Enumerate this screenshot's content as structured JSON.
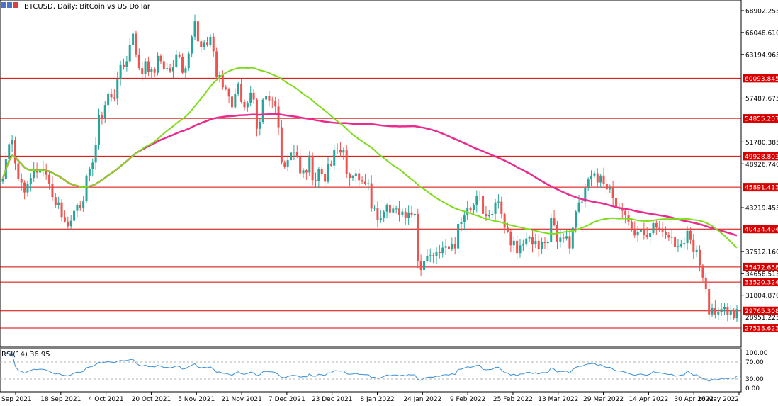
{
  "header": {
    "title": "BTCUSD, Daily:  BitCoin vs US Dollar"
  },
  "indicator": {
    "title": "RSI(14) 36.95",
    "levels": [
      "100.00",
      "70.00",
      "30.00",
      "0.00"
    ]
  },
  "colors": {
    "bull": "#26a69a",
    "bear": "#ef5350",
    "ma_fast": "#7fdc1a",
    "ma_slow": "#ea2c8f",
    "hline": "#d60000",
    "rsi_line": "#3a8fd4"
  },
  "chart_data": {
    "type": "candlestick",
    "title": "BTCUSD, Daily:  BitCoin vs US Dollar",
    "ylim": [
      25400,
      70100
    ],
    "y_ticks": [
      "68902.255",
      "66048.610",
      "63194.965",
      "57487.675",
      "51780.385",
      "48926.740",
      "43219.455",
      "37512.160",
      "34658.515",
      "31804.870",
      "28951.225"
    ],
    "x_labels": [
      "Sep 2021",
      "18 Sep 2021",
      "4 Oct 2021",
      "20 Oct 2021",
      "5 Nov 2021",
      "21 Nov 2021",
      "7 Dec 2021",
      "23 Dec 2021",
      "8 Jan 2022",
      "24 Jan 2022",
      "9 Feb 2022",
      "25 Feb 2022",
      "13 Mar 2022",
      "29 Mar 2022",
      "14 Apr 2022",
      "30 Apr 2022",
      "16 May 2022"
    ],
    "horizontal_levels": [
      "60093.845",
      "54855.207",
      "49928.803",
      "45891.413",
      "40434.404",
      "35472.658",
      "33520.324",
      "29765.308",
      "27518.623"
    ],
    "close_series": [
      47000,
      49500,
      51500,
      52000,
      49000,
      47000,
      46500,
      45200,
      46300,
      47100,
      48200,
      47800,
      48300,
      48100,
      47500,
      46300,
      44600,
      43500,
      43900,
      42000,
      41400,
      40800,
      41500,
      42800,
      43600,
      43200,
      44100,
      47400,
      48300,
      49100,
      51400,
      55300,
      54900,
      56600,
      58100,
      57600,
      57400,
      60000,
      61800,
      61600,
      62300,
      64400,
      65900,
      63200,
      61400,
      60600,
      62300,
      60900,
      61300,
      60800,
      63000,
      62300,
      61300,
      61400,
      61000,
      61600,
      63200,
      62900,
      60800,
      61400,
      63300,
      65500,
      67500,
      64900,
      64100,
      64800,
      64400,
      65500,
      63600,
      60300,
      60500,
      58900,
      58700,
      57700,
      56300,
      58100,
      59300,
      57000,
      56300,
      56900,
      58200,
      57300,
      53500,
      54400,
      57300,
      57800,
      57200,
      57100,
      56400,
      53700,
      49100,
      48500,
      49400,
      50400,
      50500,
      49900,
      47700,
      48100,
      47800,
      50000,
      46800,
      46700,
      48300,
      47600,
      46600,
      48900,
      48700,
      50800,
      50800,
      50400,
      50700,
      47600,
      47100,
      47300,
      47700,
      46800,
      46600,
      46300,
      46400,
      43100,
      43200,
      41600,
      41900,
      42700,
      43600,
      42600,
      43100,
      43100,
      42300,
      42700,
      41900,
      42600,
      42300,
      42400,
      36200,
      35100,
      36300,
      36900,
      37000,
      36900,
      37500,
      37300,
      38000,
      38200,
      37800,
      38500,
      37900,
      41100,
      41300,
      42200,
      43200,
      42900,
      43600,
      44700,
      44800,
      42400,
      42100,
      42300,
      42400,
      43900,
      44000,
      42400,
      40600,
      40100,
      38300,
      38900,
      37300,
      38300,
      38400,
      39200,
      39400,
      38400,
      38900,
      37800,
      38700,
      38600,
      38800,
      41900,
      41000,
      38800,
      39300,
      39200,
      39500,
      37900,
      40600,
      42700,
      43900,
      44000,
      45800,
      46900,
      47400,
      47700,
      46500,
      47400,
      46300,
      45600,
      45800,
      44500,
      43200,
      43200,
      42800,
      42200,
      41400,
      40500,
      39600,
      40100,
      40300,
      39700,
      39400,
      39900,
      41200,
      40600,
      40500,
      40100,
      39700,
      39300,
      39400,
      38100,
      38200,
      38500,
      38600,
      40200,
      39000,
      37400,
      37700,
      35700,
      34100,
      32600,
      29300,
      30200,
      29300,
      29600,
      30000,
      30300,
      29200,
      29800,
      28800,
      30000
    ]
  }
}
